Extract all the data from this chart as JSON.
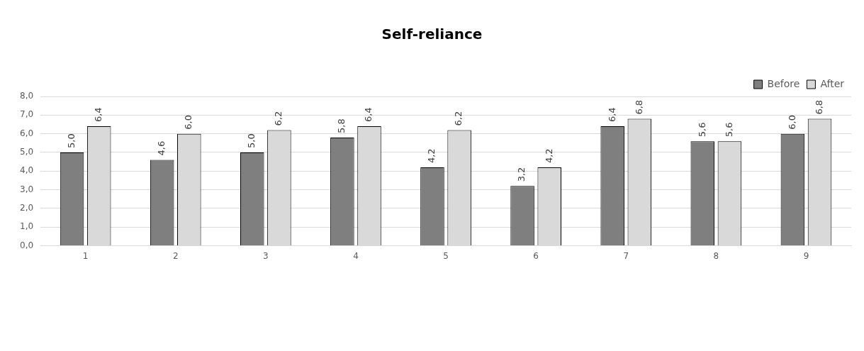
{
  "chart_data": {
    "type": "bar",
    "title": "Self-reliance",
    "categories": [
      "1",
      "2",
      "3",
      "4",
      "5",
      "6",
      "7",
      "8",
      "9"
    ],
    "series": [
      {
        "name": "Before",
        "color": "#7f7f7f",
        "values": [
          5.0,
          4.6,
          5.0,
          5.8,
          4.2,
          3.2,
          6.4,
          5.6,
          6.0
        ],
        "value_labels": [
          "5,0",
          "4,6",
          "5,0",
          "5,8",
          "4,2",
          "3,2",
          "6,4",
          "5,6",
          "6,0"
        ]
      },
      {
        "name": "After",
        "color": "#d9d9d9",
        "values": [
          6.4,
          6.0,
          6.2,
          6.4,
          6.2,
          4.2,
          6.8,
          5.6,
          6.8
        ],
        "value_labels": [
          "6,4",
          "6,0",
          "6,2",
          "6,4",
          "6,2",
          "4,2",
          "6,8",
          "5,6",
          "6,8"
        ]
      }
    ],
    "ylim": [
      0,
      8
    ],
    "yticks": [
      {
        "value": 0,
        "label": "0,0"
      },
      {
        "value": 1,
        "label": "1,0"
      },
      {
        "value": 2,
        "label": "2,0"
      },
      {
        "value": 3,
        "label": "3,0"
      },
      {
        "value": 4,
        "label": "4,0"
      },
      {
        "value": 5,
        "label": "5,0"
      },
      {
        "value": 6,
        "label": "6,0"
      },
      {
        "value": 7,
        "label": "7,0"
      },
      {
        "value": 8,
        "label": "8,0"
      }
    ],
    "grid": "y",
    "legend": "top right"
  }
}
